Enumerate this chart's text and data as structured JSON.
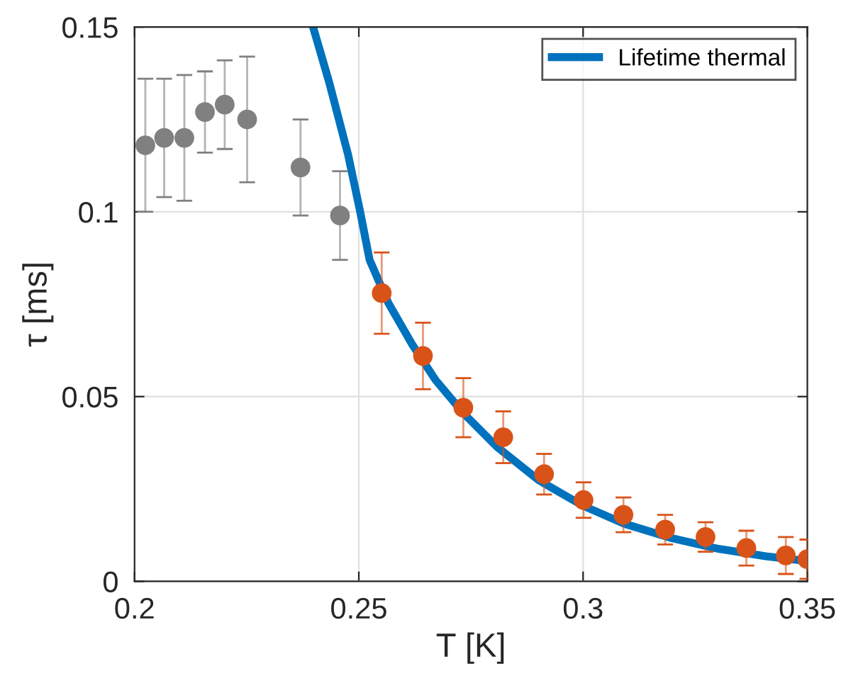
{
  "chart_data": {
    "type": "scatter",
    "xlabel": "T [K]",
    "ylabel": "τ [ms]",
    "xlim": [
      0.2,
      0.35
    ],
    "xticks": [
      0.2,
      0.25,
      0.3,
      0.35
    ],
    "ylim": [
      0,
      0.15
    ],
    "yticks": [
      0,
      0.05,
      0.1,
      0.15
    ],
    "grid": true,
    "legend": "top right",
    "marker": "circle",
    "series": [
      {
        "color": "#808080",
        "x": [
          0.2024,
          0.2066,
          0.2111,
          0.2157,
          0.2201,
          0.2251,
          0.237,
          0.2458
        ],
        "values": [
          0.118,
          0.12,
          0.12,
          0.127,
          0.129,
          0.125,
          0.112,
          0.099
        ],
        "errors": [
          0.018,
          0.016,
          0.017,
          0.011,
          0.012,
          0.017,
          0.013,
          0.012
        ]
      },
      {
        "color": "#d95319",
        "x": [
          0.2551,
          0.2643,
          0.2733,
          0.2822,
          0.2913,
          0.3001,
          0.309,
          0.3183,
          0.3273,
          0.3364,
          0.3452,
          0.35
        ],
        "values": [
          0.078,
          0.061,
          0.047,
          0.039,
          0.029,
          0.022,
          0.018,
          0.014,
          0.012,
          0.009,
          0.007,
          0.006
        ],
        "errors": [
          0.011,
          0.009,
          0.008,
          0.007,
          0.0055,
          0.0048,
          0.0047,
          0.004,
          0.004,
          0.0047,
          0.005,
          0.0053
        ]
      },
      {
        "type": "line",
        "name": "Lifetime thermal",
        "color": "#0072bd",
        "marker": "none",
        "line_style": "solid",
        "x": [
          0.2398,
          0.2434,
          0.2476,
          0.2503,
          0.2524,
          0.2566,
          0.2618,
          0.2671,
          0.2734,
          0.2808,
          0.2902,
          0.2999,
          0.3092,
          0.3197,
          0.3302,
          0.3407,
          0.35
        ],
        "values": [
          0.15,
          0.135,
          0.1155,
          0.1,
          0.087,
          0.0753,
          0.0643,
          0.0545,
          0.0454,
          0.0364,
          0.0273,
          0.0205,
          0.0156,
          0.0117,
          0.0088,
          0.0068,
          0.0055
        ]
      }
    ]
  }
}
